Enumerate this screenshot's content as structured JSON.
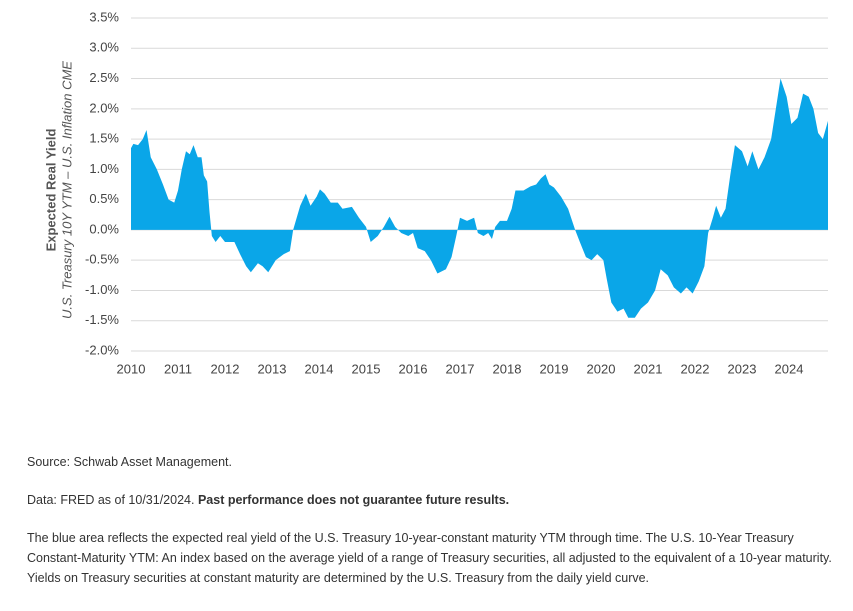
{
  "chart_data": {
    "type": "area",
    "y_label": "Expected Real Yield",
    "y_sublabel": "U.S. Treasury 10Y YTM – U.S. Inflation CME",
    "color": "#0aa6e8",
    "grid": true,
    "xlim": [
      2010,
      2024.83
    ],
    "xticks": [
      2010,
      2011,
      2012,
      2013,
      2014,
      2015,
      2016,
      2017,
      2018,
      2019,
      2020,
      2021,
      2022,
      2023,
      2024
    ],
    "ylim": [
      -2.0,
      3.5
    ],
    "yticks": [
      {
        "value": 3.5,
        "label": "3.5%"
      },
      {
        "value": 3.0,
        "label": "3.0%"
      },
      {
        "value": 2.5,
        "label": "2.5%"
      },
      {
        "value": 2.0,
        "label": "2.0%"
      },
      {
        "value": 1.5,
        "label": "1.5%"
      },
      {
        "value": 1.0,
        "label": "1.0%"
      },
      {
        "value": 0.5,
        "label": "0.5%"
      },
      {
        "value": 0.0,
        "label": "0.0%"
      },
      {
        "value": -0.5,
        "label": "-0.5%"
      },
      {
        "value": -1.0,
        "label": "-1.0%"
      },
      {
        "value": -1.5,
        "label": "-1.5%"
      },
      {
        "value": -2.0,
        "label": "-2.0%"
      }
    ],
    "x": [
      2010.0,
      2010.05,
      2010.15,
      2010.25,
      2010.33,
      2010.42,
      2010.55,
      2010.68,
      2010.8,
      2010.92,
      2011.0,
      2011.08,
      2011.17,
      2011.25,
      2011.33,
      2011.42,
      2011.5,
      2011.55,
      2011.62,
      2011.67,
      2011.72,
      2011.8,
      2011.9,
      2012.0,
      2012.2,
      2012.32,
      2012.45,
      2012.55,
      2012.7,
      2012.8,
      2012.92,
      2013.08,
      2013.25,
      2013.38,
      2013.45,
      2013.6,
      2013.72,
      2013.82,
      2013.95,
      2014.02,
      2014.12,
      2014.25,
      2014.4,
      2014.5,
      2014.7,
      2014.85,
      2015.0,
      2015.1,
      2015.25,
      2015.38,
      2015.5,
      2015.62,
      2015.75,
      2015.9,
      2016.0,
      2016.1,
      2016.25,
      2016.38,
      2016.52,
      2016.7,
      2016.82,
      2016.92,
      2017.0,
      2017.15,
      2017.3,
      2017.38,
      2017.5,
      2017.6,
      2017.68,
      2017.75,
      2017.85,
      2018.0,
      2018.1,
      2018.18,
      2018.35,
      2018.5,
      2018.62,
      2018.72,
      2018.82,
      2018.9,
      2019.0,
      2019.15,
      2019.3,
      2019.45,
      2019.55,
      2019.68,
      2019.8,
      2019.92,
      2020.05,
      2020.12,
      2020.22,
      2020.35,
      2020.48,
      2020.58,
      2020.72,
      2020.85,
      2021.0,
      2021.15,
      2021.27,
      2021.42,
      2021.55,
      2021.7,
      2021.82,
      2021.95,
      2022.08,
      2022.2,
      2022.28,
      2022.38,
      2022.45,
      2022.55,
      2022.65,
      2022.75,
      2022.85,
      2023.0,
      2023.12,
      2023.22,
      2023.35,
      2023.48,
      2023.62,
      2023.72,
      2023.82,
      2023.95,
      2024.05,
      2024.18,
      2024.3,
      2024.42,
      2024.52,
      2024.62,
      2024.72,
      2024.83
    ],
    "values": [
      1.35,
      1.42,
      1.4,
      1.5,
      1.65,
      1.2,
      1.0,
      0.75,
      0.5,
      0.45,
      0.65,
      1.0,
      1.3,
      1.25,
      1.4,
      1.2,
      1.2,
      0.9,
      0.8,
      0.3,
      -0.1,
      -0.2,
      -0.1,
      -0.2,
      -0.2,
      -0.4,
      -0.6,
      -0.7,
      -0.55,
      -0.6,
      -0.7,
      -0.5,
      -0.4,
      -0.35,
      0.0,
      0.4,
      0.6,
      0.4,
      0.55,
      0.67,
      0.6,
      0.45,
      0.45,
      0.35,
      0.38,
      0.2,
      0.05,
      -0.2,
      -0.1,
      0.05,
      0.22,
      0.05,
      -0.05,
      -0.1,
      -0.05,
      -0.3,
      -0.35,
      -0.5,
      -0.72,
      -0.65,
      -0.45,
      -0.1,
      0.2,
      0.15,
      0.2,
      -0.05,
      -0.1,
      -0.05,
      -0.15,
      0.05,
      0.15,
      0.15,
      0.35,
      0.65,
      0.65,
      0.72,
      0.75,
      0.85,
      0.92,
      0.75,
      0.7,
      0.55,
      0.35,
      0.0,
      -0.2,
      -0.45,
      -0.5,
      -0.4,
      -0.5,
      -0.8,
      -1.2,
      -1.35,
      -1.3,
      -1.45,
      -1.45,
      -1.3,
      -1.2,
      -1.0,
      -0.65,
      -0.75,
      -0.95,
      -1.05,
      -0.95,
      -1.05,
      -0.85,
      -0.6,
      -0.05,
      0.2,
      0.4,
      0.2,
      0.35,
      0.9,
      1.4,
      1.3,
      1.05,
      1.3,
      1.0,
      1.2,
      1.5,
      2.0,
      2.5,
      2.2,
      1.75,
      1.85,
      2.25,
      2.2,
      2.0,
      1.6,
      1.5,
      1.8
    ]
  },
  "notes": {
    "source": "Source: Schwab Asset Management.",
    "data_note": "Data: FRED as of 10/31/2024.",
    "data_disclaimer": "Past performance does not guarantee future results.",
    "description": "The blue area reflects the expected real yield of the U.S. Treasury 10-year-constant maturity YTM through time. The U.S. 10-Year Treasury Constant-Maturity YTM: An index based on the average yield of a range of Treasury securities, all adjusted to the equivalent of a 10-year maturity. Yields on Treasury securities at constant maturity are determined by the U.S. Treasury from the daily yield curve."
  }
}
